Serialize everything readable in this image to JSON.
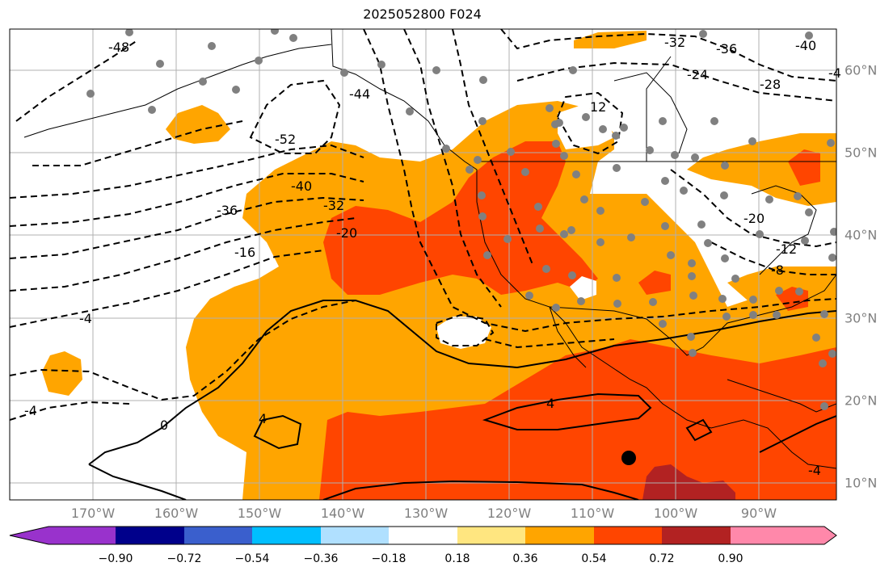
{
  "title": "2025052800 F024",
  "map": {
    "lon_labels": [
      "170°W",
      "160°W",
      "150°W",
      "140°W",
      "130°W",
      "120°W",
      "110°W",
      "100°W",
      "90°W"
    ],
    "lat_labels": [
      "60°N",
      "50°N",
      "40°N",
      "30°N",
      "20°N",
      "10°N"
    ],
    "contour_labels": [
      "-48",
      "-52",
      "-44",
      "-40",
      "-36",
      "-32",
      "-20",
      "-16",
      "-4",
      "-4",
      "-4",
      "0",
      "4",
      "4",
      "-32",
      "-36",
      "-40",
      "-24",
      "-28",
      "12",
      "-20",
      "-12",
      "-8",
      "-4"
    ],
    "colors": {
      "fill_036_054": "#ffa500",
      "fill_054_072": "#ff4500",
      "fill_072_090": "#b22222",
      "gray_points": "#808080",
      "grid": "#b0b0b0"
    }
  },
  "colorbar": {
    "tick_labels": [
      "−0.90",
      "−0.72",
      "−0.54",
      "−0.36",
      "−0.18",
      "0.18",
      "0.36",
      "0.54",
      "0.72",
      "0.90"
    ],
    "colors": [
      "#9932cc",
      "#00008b",
      "#3a5fcd",
      "#00bfff",
      "#b0e0ff",
      "#ffffff",
      "#ffe680",
      "#ffa500",
      "#ff4500",
      "#b22222",
      "#ff88aa"
    ]
  }
}
